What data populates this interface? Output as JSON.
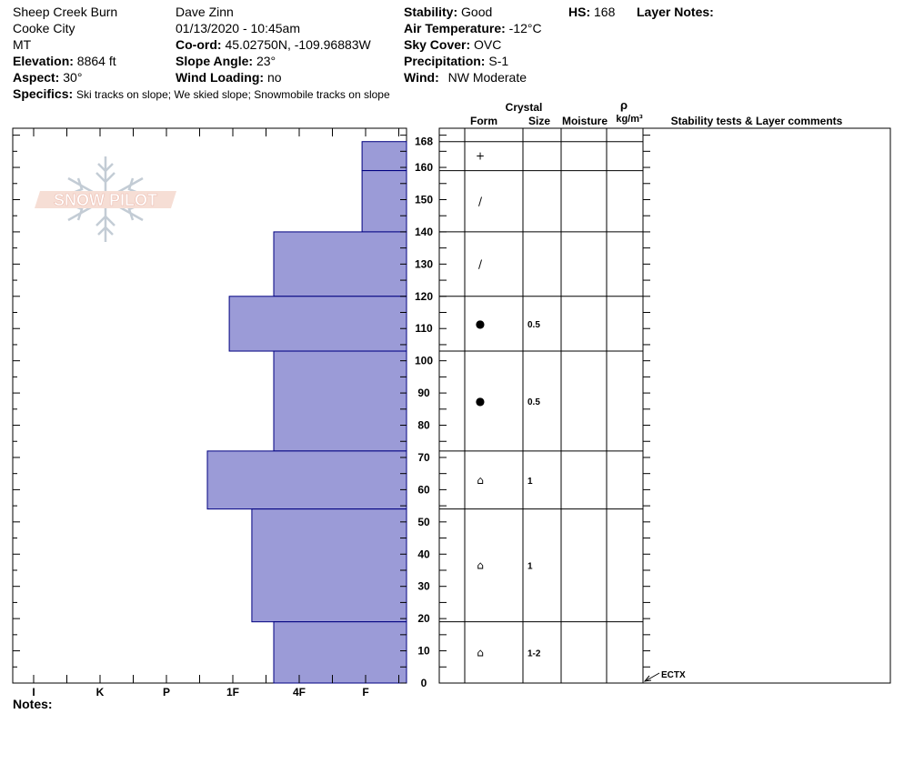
{
  "header": {
    "location": "Sheep Creek Burn",
    "range": "Cooke City",
    "state": "MT",
    "elevation_label": "Elevation:",
    "elevation": "8864 ft",
    "aspect_label": "Aspect:",
    "aspect": "30°",
    "specifics_label": "Specifics:",
    "specifics": "Ski tracks on slope; We skied slope; Snowmobile tracks on slope",
    "observer": "Dave Zinn",
    "datetime": "01/13/2020 - 10:45am",
    "coord_label": "Co-ord:",
    "coord": "45.02750N, -109.96883W",
    "slope_label": "Slope Angle:",
    "slope": "23°",
    "wind_loading_label": "Wind Loading:",
    "wind_loading": "no",
    "stability_label": "Stability:",
    "stability": "Good",
    "air_temp_label": "Air Temperature:",
    "air_temp": "-12°C",
    "sky_label": "Sky Cover:",
    "sky": "OVC",
    "precip_label": "Precipitation:",
    "precip": "S-1",
    "wind_label": "Wind:",
    "wind": "NW Moderate",
    "hs_label": "HS:",
    "hs": "168",
    "layer_notes_label": "Layer Notes:"
  },
  "logo_text": "SNOW PILOT",
  "columns": {
    "crystal": "Crystal",
    "form": "Form",
    "size": "Size",
    "moisture": "Moisture",
    "rho": "ρ",
    "density": "kg/m³",
    "stability": "Stability tests & Layer comments"
  },
  "notes_label": "Notes:",
  "colors": {
    "hardness_fill": "#9b9bd7",
    "hardness_stroke": "#000080"
  },
  "chart_data": {
    "type": "bar",
    "title": "",
    "ylabel": "",
    "ylim": [
      0,
      172
    ],
    "height_ticks": [
      0,
      10,
      20,
      30,
      40,
      50,
      60,
      70,
      80,
      90,
      100,
      110,
      120,
      130,
      140,
      150,
      160,
      168
    ],
    "hardness_scale": [
      "I",
      "K",
      "P",
      "1F",
      "4F",
      "F"
    ],
    "layers": [
      {
        "top": 168,
        "bottom": 159,
        "hardness": 0.67,
        "form": "+",
        "size": ""
      },
      {
        "top": 159,
        "bottom": 140,
        "hardness": 0.67,
        "form": "/",
        "size": ""
      },
      {
        "top": 140,
        "bottom": 120,
        "hardness": 2.0,
        "form": "/",
        "size": ""
      },
      {
        "top": 120,
        "bottom": 103,
        "hardness": 2.67,
        "form": "●",
        "size": "0.5"
      },
      {
        "top": 103,
        "bottom": 72,
        "hardness": 2.0,
        "form": "●",
        "size": "0.5"
      },
      {
        "top": 72,
        "bottom": 54,
        "hardness": 3.0,
        "form": "⌂",
        "size": "1"
      },
      {
        "top": 54,
        "bottom": 19,
        "hardness": 2.33,
        "form": "⌂",
        "size": "1"
      },
      {
        "top": 19,
        "bottom": 0,
        "hardness": 2.0,
        "form": "⌂",
        "size": "1-2"
      }
    ],
    "stability_tests": [
      {
        "label": "ECTX",
        "height": 0
      }
    ]
  }
}
